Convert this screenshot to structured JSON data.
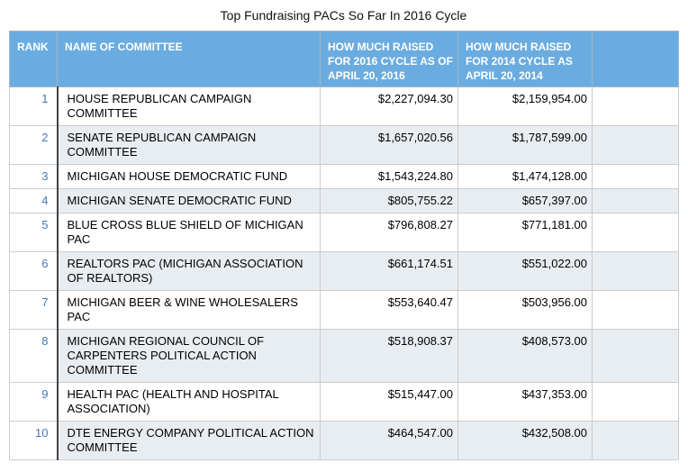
{
  "title": "Top Fundraising PACs So Far In 2016 Cycle",
  "colors": {
    "header_bg": "#6BACE0",
    "header_text": "#FFFFFF",
    "alt_row_bg": "#E8EDF2",
    "rank_text": "#4379B9",
    "grid_line": "#CCCCCC",
    "rank_divider": "#444444"
  },
  "table": {
    "columns": [
      {
        "key": "rank",
        "label": "RANK"
      },
      {
        "key": "name",
        "label": "NAME OF COMMITTEE"
      },
      {
        "key": "raised_2016",
        "label": "HOW MUCH RAISED FOR 2016 CYCLE AS OF APRIL 20, 2016"
      },
      {
        "key": "raised_2014",
        "label": "HOW MUCH RAISED FOR 2014 CYCLE AS APRIL 20, 2014"
      },
      {
        "key": "extra",
        "label": ""
      }
    ],
    "rows": [
      {
        "rank": "1",
        "name": "HOUSE REPUBLICAN CAMPAIGN COMMITTEE",
        "raised_2016": "$2,227,094.30",
        "raised_2014": "$2,159,954.00",
        "extra": ""
      },
      {
        "rank": "2",
        "name": "SENATE REPUBLICAN CAMPAIGN COMMITTEE",
        "raised_2016": "$1,657,020.56",
        "raised_2014": "$1,787,599.00",
        "extra": ""
      },
      {
        "rank": "3",
        "name": "MICHIGAN HOUSE DEMOCRATIC FUND",
        "raised_2016": "$1,543,224.80",
        "raised_2014": "$1,474,128.00",
        "extra": ""
      },
      {
        "rank": "4",
        "name": "MICHIGAN SENATE DEMOCRATIC FUND",
        "raised_2016": "$805,755.22",
        "raised_2014": "$657,397.00",
        "extra": ""
      },
      {
        "rank": "5",
        "name": "BLUE CROSS BLUE SHIELD OF MICHIGAN PAC",
        "raised_2016": "$796,808.27",
        "raised_2014": "$771,181.00",
        "extra": ""
      },
      {
        "rank": "6",
        "name": "REALTORS PAC (MICHIGAN ASSOCIATION OF REALTORS)",
        "raised_2016": "$661,174.51",
        "raised_2014": "$551,022.00",
        "extra": ""
      },
      {
        "rank": "7",
        "name": "MICHIGAN BEER & WINE WHOLESALERS PAC",
        "raised_2016": "$553,640.47",
        "raised_2014": "$503,956.00",
        "extra": ""
      },
      {
        "rank": "8",
        "name": "MICHIGAN REGIONAL COUNCIL OF CARPENTERS POLITICAL ACTION COMMITTEE",
        "raised_2016": "$518,908.37",
        "raised_2014": "$408,573.00",
        "extra": ""
      },
      {
        "rank": "9",
        "name": "HEALTH PAC (HEALTH AND HOSPITAL ASSOCIATION)",
        "raised_2016": "$515,447.00",
        "raised_2014": "$437,353.00",
        "extra": ""
      },
      {
        "rank": "10",
        "name": "DTE ENERGY COMPANY POLITICAL ACTION COMMITTEE",
        "raised_2016": "$464,547.00",
        "raised_2014": "$432,508.00",
        "extra": ""
      }
    ]
  },
  "chart_data": {
    "type": "table",
    "title": "Top Fundraising PACs So Far In 2016 Cycle",
    "columns": [
      "RANK",
      "NAME OF COMMITTEE",
      "HOW MUCH RAISED FOR 2016 CYCLE AS OF APRIL 20, 2016",
      "HOW MUCH RAISED FOR 2014 CYCLE AS APRIL 20, 2014"
    ],
    "rows": [
      [
        1,
        "HOUSE REPUBLICAN CAMPAIGN COMMITTEE",
        2227094.3,
        2159954.0
      ],
      [
        2,
        "SENATE REPUBLICAN CAMPAIGN COMMITTEE",
        1657020.56,
        1787599.0
      ],
      [
        3,
        "MICHIGAN HOUSE DEMOCRATIC FUND",
        1543224.8,
        1474128.0
      ],
      [
        4,
        "MICHIGAN SENATE DEMOCRATIC FUND",
        805755.22,
        657397.0
      ],
      [
        5,
        "BLUE CROSS BLUE SHIELD OF MICHIGAN PAC",
        796808.27,
        771181.0
      ],
      [
        6,
        "REALTORS PAC (MICHIGAN ASSOCIATION OF REALTORS)",
        661174.51,
        551022.0
      ],
      [
        7,
        "MICHIGAN BEER & WINE WHOLESALERS PAC",
        553640.47,
        503956.0
      ],
      [
        8,
        "MICHIGAN REGIONAL COUNCIL OF CARPENTERS POLITICAL ACTION COMMITTEE",
        518908.37,
        408573.0
      ],
      [
        9,
        "HEALTH PAC (HEALTH AND HOSPITAL ASSOCIATION)",
        515447.0,
        437353.0
      ],
      [
        10,
        "DTE ENERGY COMPANY POLITICAL ACTION COMMITTEE",
        464547.0,
        432508.0
      ]
    ]
  }
}
